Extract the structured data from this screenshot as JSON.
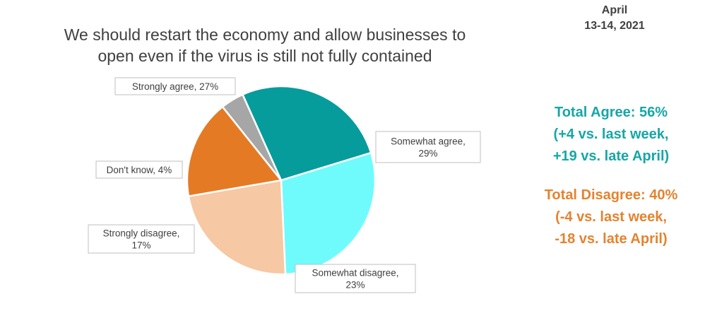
{
  "title_lines": [
    "We should restart the economy and allow businesses to",
    "open even if the virus is still not fully contained"
  ],
  "date": {
    "line1": "April",
    "line2": "13-14, 2021"
  },
  "summary": {
    "agree": {
      "line1": "Total Agree: 56%",
      "line2": "(+4 vs. last week,",
      "line3": "+19 vs. late April)",
      "color": "#17A6A6"
    },
    "disagree": {
      "line1": "Total Disagree: 40%",
      "line2": "(-4 vs. last week,",
      "line3": "-18 vs. late April)",
      "color": "#E3832F"
    }
  },
  "chart_data": {
    "type": "pie",
    "title": "We should restart the economy and allow businesses to open even if the virus is still not fully contained",
    "slices": [
      {
        "label": "Somewhat agree",
        "value": 29,
        "color": "#6FFBFB",
        "label_lines": [
          "Somewhat agree,",
          "29%"
        ]
      },
      {
        "label": "Somewhat disagree",
        "value": 23,
        "color": "#F6C8A4",
        "label_lines": [
          "Somewhat disagree,",
          "23%"
        ]
      },
      {
        "label": "Strongly disagree",
        "value": 17,
        "color": "#E57A25",
        "label_lines": [
          "Strongly disagree,",
          "17%"
        ]
      },
      {
        "label": "Don't know",
        "value": 4,
        "color": "#A6A6A6",
        "label_lines": [
          "Don't know, 4%"
        ]
      },
      {
        "label": "Strongly agree",
        "value": 27,
        "color": "#069C9C",
        "label_lines": [
          "Strongly agree, 27%"
        ]
      }
    ]
  }
}
